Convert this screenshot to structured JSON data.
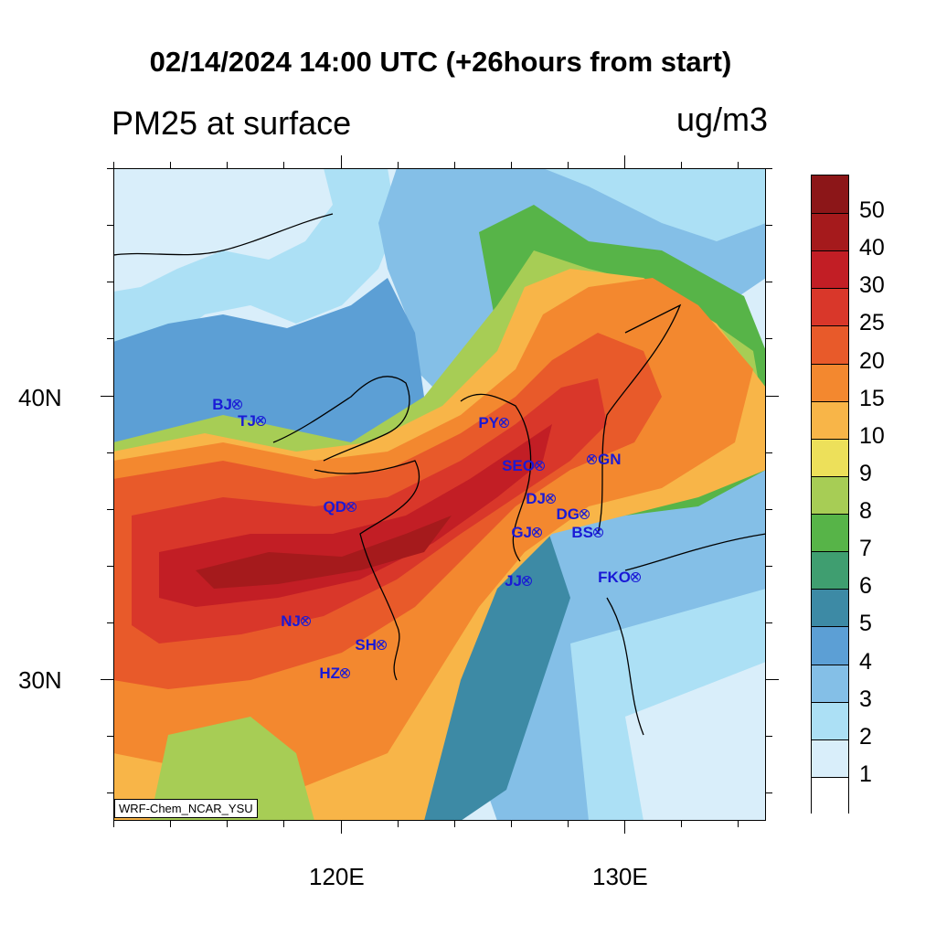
{
  "header": {
    "title": "02/14/2024 14:00 UTC (+26hours from start)",
    "variable": "PM25 at surface",
    "units": "ug/m3"
  },
  "axes": {
    "lon_labels": [
      "120E",
      "130E"
    ],
    "lat_labels": [
      "40N",
      "30N"
    ]
  },
  "credit": "WRF-Chem_NCAR_YSU",
  "colorbar": {
    "colors": [
      "#8c1618",
      "#a51a1c",
      "#c21e25",
      "#d9372a",
      "#e85a2a",
      "#f3882f",
      "#f8b548",
      "#ede05a",
      "#a7cd55",
      "#57b448",
      "#3f9e70",
      "#3d8aa5",
      "#5c9fd5",
      "#84bfe7",
      "#ace0f5",
      "#d9eefa",
      "#ffffff"
    ],
    "labels": [
      "50",
      "40",
      "30",
      "25",
      "20",
      "15",
      "10",
      "9",
      "8",
      "7",
      "6",
      "5",
      "4",
      "3",
      "2",
      "1"
    ]
  },
  "stations": [
    {
      "id": "BJ",
      "label": "BJ",
      "side": "left"
    },
    {
      "id": "TJ",
      "label": "TJ",
      "side": "left"
    },
    {
      "id": "PY",
      "label": "PY",
      "side": "left"
    },
    {
      "id": "SEO",
      "label": "SEO",
      "side": "left"
    },
    {
      "id": "GN",
      "label": "GN",
      "side": "right"
    },
    {
      "id": "QD",
      "label": "QD",
      "side": "left"
    },
    {
      "id": "DJ",
      "label": "DJ",
      "side": "left"
    },
    {
      "id": "DG",
      "label": "DG",
      "side": "left"
    },
    {
      "id": "GJ",
      "label": "GJ",
      "side": "left"
    },
    {
      "id": "BS",
      "label": "BS",
      "side": "left"
    },
    {
      "id": "JJ",
      "label": "JJ",
      "side": "left"
    },
    {
      "id": "FKO",
      "label": "FKO",
      "side": "left"
    },
    {
      "id": "NJ",
      "label": "NJ",
      "side": "left"
    },
    {
      "id": "SH",
      "label": "SH",
      "side": "left"
    },
    {
      "id": "HZ",
      "label": "HZ",
      "side": "left"
    }
  ],
  "style": {
    "station_color": "#1a1ad6"
  }
}
